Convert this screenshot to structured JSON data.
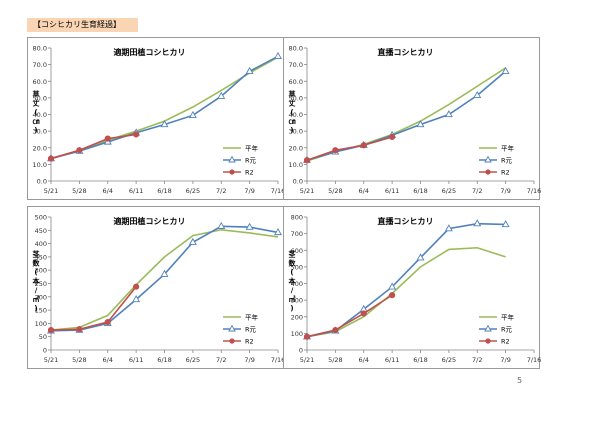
{
  "page_label": "【コシヒカリ生育経過】",
  "page_number": "5",
  "colors": {
    "平年": "#9bbb59",
    "R元": "#4f81bd",
    "R2": "#c0504d",
    "axis": "#868686"
  },
  "x_ticks": [
    "5/21",
    "5/28",
    "6/4",
    "6/11",
    "6/18",
    "6/25",
    "7/2",
    "7/9",
    "7/16"
  ],
  "chart_data": [
    {
      "id": "c1",
      "type": "line",
      "title": "適期田植コシヒカリ",
      "ylabel": "草丈(㎝)",
      "ylim": [
        0,
        80
      ],
      "ystep": 10,
      "ydecimals": 1,
      "legend": true,
      "series": [
        {
          "name": "平年",
          "x": [
            "5/21",
            "5/28",
            "6/4",
            "6/11",
            "6/18",
            "6/25",
            "7/2",
            "7/9",
            "7/16"
          ],
          "values": [
            13.5,
            18.5,
            24.5,
            30.0,
            36.0,
            44.5,
            54.5,
            65.0,
            74.5
          ]
        },
        {
          "name": "R元",
          "x": [
            "5/21",
            "5/28",
            "6/4",
            "6/11",
            "6/18",
            "6/25",
            "7/2",
            "7/9",
            "7/16"
          ],
          "values": [
            13.5,
            18.0,
            23.5,
            29.0,
            34.0,
            39.5,
            51.0,
            66.0,
            75.0
          ]
        },
        {
          "name": "R2",
          "x": [
            "5/21",
            "5/28",
            "6/4",
            "6/11"
          ],
          "values": [
            13.5,
            18.5,
            25.5,
            28.0
          ]
        }
      ]
    },
    {
      "id": "c2",
      "type": "line",
      "title": "直播コシヒカリ",
      "ylabel": "草丈(㎝)",
      "ylim": [
        0,
        80
      ],
      "ystep": 10,
      "ydecimals": 1,
      "legend": true,
      "series": [
        {
          "name": "平年",
          "x": [
            "5/21",
            "5/28",
            "6/4",
            "6/11",
            "6/18",
            "6/25",
            "7/2",
            "7/9"
          ],
          "values": [
            12.0,
            17.5,
            22.0,
            28.0,
            36.0,
            46.0,
            57.0,
            68.0
          ]
        },
        {
          "name": "R元",
          "x": [
            "5/21",
            "5/28",
            "6/4",
            "6/11",
            "6/18",
            "6/25",
            "7/2",
            "7/9"
          ],
          "values": [
            12.5,
            17.5,
            21.5,
            27.5,
            34.0,
            40.0,
            51.5,
            66.0
          ]
        },
        {
          "name": "R2",
          "x": [
            "5/21",
            "5/28",
            "6/4",
            "6/11"
          ],
          "values": [
            12.5,
            18.5,
            21.5,
            26.5
          ]
        }
      ]
    },
    {
      "id": "c3",
      "type": "line",
      "title": "適期田植コシヒカリ",
      "ylabel": "茎数(本/㎡)",
      "ylim": [
        0,
        500
      ],
      "ystep": 50,
      "ydecimals": 0,
      "legend": true,
      "series": [
        {
          "name": "平年",
          "x": [
            "5/21",
            "5/28",
            "6/4",
            "6/11",
            "6/18",
            "6/25",
            "7/2",
            "7/9",
            "7/16"
          ],
          "values": [
            75,
            85,
            130,
            245,
            350,
            430,
            452,
            440,
            425
          ]
        },
        {
          "name": "R元",
          "x": [
            "5/21",
            "5/28",
            "6/4",
            "6/11",
            "6/18",
            "6/25",
            "7/2",
            "7/9",
            "7/16"
          ],
          "values": [
            72,
            75,
            100,
            190,
            285,
            405,
            465,
            462,
            442
          ]
        },
        {
          "name": "R2",
          "x": [
            "5/21",
            "5/28",
            "6/4",
            "6/11"
          ],
          "values": [
            75,
            78,
            105,
            238
          ]
        }
      ]
    },
    {
      "id": "c4",
      "type": "line",
      "title": "直播コシヒカリ",
      "ylabel": "茎数(本/㎡)",
      "ylim": [
        0,
        800
      ],
      "ystep": 100,
      "ydecimals": 0,
      "legend": true,
      "series": [
        {
          "name": "平年",
          "x": [
            "5/21",
            "5/28",
            "6/4",
            "6/11",
            "6/18",
            "6/25",
            "7/2",
            "7/9"
          ],
          "values": [
            80,
            110,
            200,
            340,
            500,
            605,
            615,
            560
          ]
        },
        {
          "name": "R元",
          "x": [
            "5/21",
            "5/28",
            "6/4",
            "6/11",
            "6/18",
            "6/25",
            "7/2",
            "7/9"
          ],
          "values": [
            80,
            115,
            245,
            380,
            555,
            730,
            760,
            755
          ]
        },
        {
          "name": "R2",
          "x": [
            "5/21",
            "5/28",
            "6/4",
            "6/11"
          ],
          "values": [
            80,
            120,
            220,
            330
          ]
        }
      ]
    }
  ]
}
